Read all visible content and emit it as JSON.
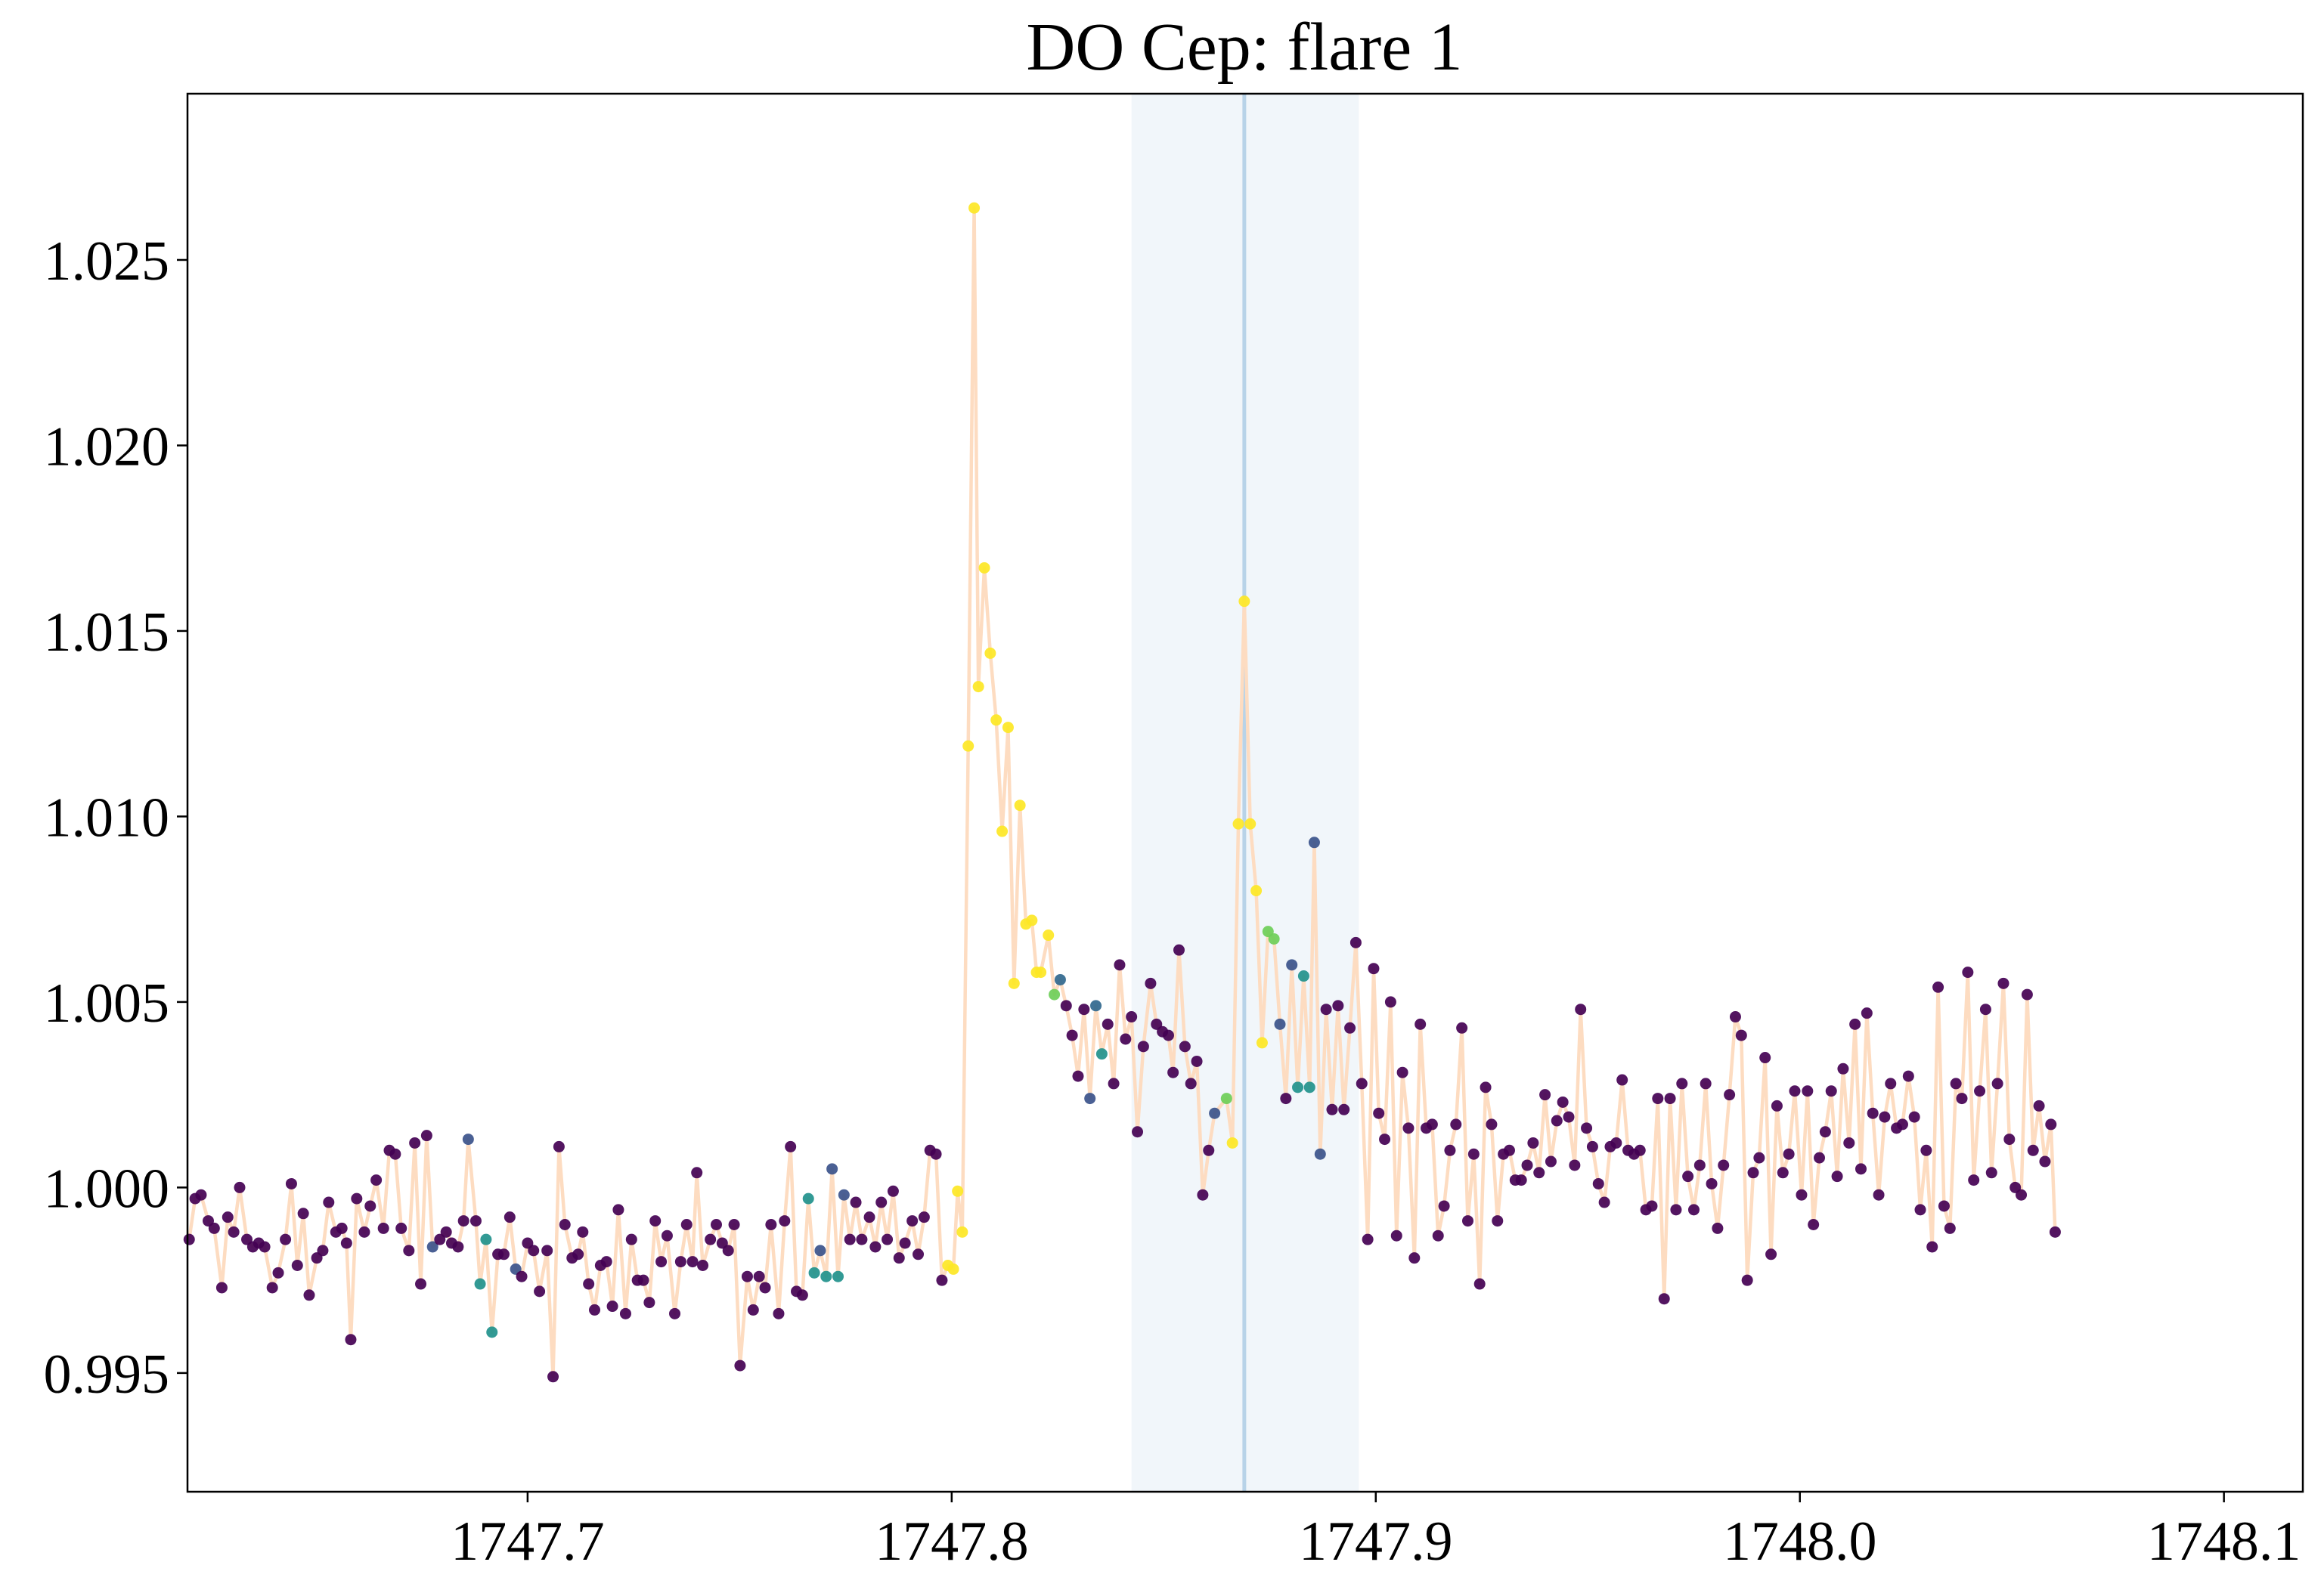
{
  "chart_data": {
    "type": "scatter",
    "title": "DO Cep: flare 1",
    "x": [
      1747.6202,
      1747.6216,
      1747.623,
      1747.6247,
      1747.6261,
      1747.6279,
      1747.6293,
      1747.6307,
      1747.6321,
      1747.6338,
      1747.6352,
      1747.6366,
      1747.638,
      1747.6398,
      1747.6412,
      1747.6429,
      1747.6443,
      1747.6457,
      1747.6471,
      1747.6485,
      1747.6503,
      1747.6517,
      1747.6531,
      1747.6548,
      1747.6562,
      1747.6573,
      1747.6583,
      1747.6597,
      1747.6615,
      1747.6629,
      1747.6643,
      1747.666,
      1747.6674,
      1747.6688,
      1747.6702,
      1747.672,
      1747.6734,
      1747.6748,
      1747.6762,
      1747.6776,
      1747.6793,
      1747.6808,
      1747.6821,
      1747.6836,
      1747.6849,
      1747.686,
      1747.6878,
      1747.6888,
      1747.6902,
      1747.6916,
      1747.693,
      1747.6944,
      1747.6958,
      1747.6972,
      1747.6986,
      1747.7,
      1747.7014,
      1747.7028,
      1747.7046,
      1747.706,
      1747.7074,
      1747.7088,
      1747.7105,
      1747.7119,
      1747.713,
      1747.7144,
      1747.7158,
      1747.7172,
      1747.7186,
      1747.72,
      1747.7214,
      1747.7231,
      1747.7245,
      1747.7259,
      1747.7273,
      1747.7287,
      1747.7301,
      1747.7315,
      1747.7329,
      1747.7347,
      1747.7361,
      1747.7375,
      1747.7389,
      1747.7399,
      1747.7413,
      1747.7431,
      1747.7445,
      1747.7459,
      1747.7473,
      1747.7487,
      1747.7501,
      1747.7518,
      1747.7532,
      1747.7546,
      1747.756,
      1747.7574,
      1747.7592,
      1747.7606,
      1747.762,
      1747.7634,
      1747.7648,
      1747.7662,
      1747.7676,
      1747.769,
      1747.7704,
      1747.7718,
      1747.7732,
      1747.7746,
      1747.776,
      1747.7774,
      1747.7788,
      1747.7806,
      1747.782,
      1747.7834,
      1747.7848,
      1747.7862,
      1747.7876,
      1747.789,
      1747.7907,
      1747.7921,
      1747.7935,
      1747.7949,
      1747.7963,
      1747.7977,
      1747.7991,
      1747.8004,
      1747.8014,
      1747.8025,
      1747.8039,
      1747.8053,
      1747.8063,
      1747.8077,
      1747.8091,
      1747.8105,
      1747.8119,
      1747.8133,
      1747.8147,
      1747.8161,
      1747.8175,
      1747.8189,
      1747.82,
      1747.821,
      1747.8228,
      1747.8242,
      1747.8256,
      1747.827,
      1747.8284,
      1747.8298,
      1747.8312,
      1747.8326,
      1747.834,
      1747.8354,
      1747.8368,
      1747.8382,
      1747.8396,
      1747.841,
      1747.8424,
      1747.8438,
      1747.8452,
      1747.8469,
      1747.8483,
      1747.8497,
      1747.8511,
      1747.8522,
      1747.8536,
      1747.855,
      1747.8564,
      1747.8578,
      1747.8592,
      1747.8606,
      1747.862,
      1747.8648,
      1747.8662,
      1747.8676,
      1747.869,
      1747.8704,
      1747.8718,
      1747.8732,
      1747.8746,
      1747.876,
      1747.8774,
      1747.8788,
      1747.8802,
      1747.8816,
      1747.883,
      1747.8844,
      1747.8855,
      1747.8869,
      1747.8883,
      1747.8897,
      1747.8911,
      1747.8925,
      1747.8939,
      1747.8953,
      1747.8967,
      1747.8981,
      1747.8995,
      1747.9007,
      1747.9021,
      1747.9035,
      1747.9049,
      1747.9063,
      1747.9077,
      1747.9091,
      1747.9105,
      1747.9119,
      1747.9133,
      1747.9147,
      1747.9161,
      1747.9175,
      1747.9189,
      1747.9203,
      1747.9217,
      1747.9231,
      1747.9245,
      1747.9259,
      1747.9273,
      1747.9287,
      1747.9301,
      1747.9315,
      1747.9329,
      1747.9343,
      1747.9357,
      1747.9371,
      1747.9385,
      1747.9399,
      1747.9413,
      1747.9427,
      1747.9441,
      1747.9455,
      1747.9469,
      1747.9483,
      1747.9497,
      1747.9511,
      1747.9525,
      1747.9539,
      1747.9553,
      1747.9567,
      1747.9581,
      1747.9595,
      1747.9609,
      1747.9623,
      1747.9637,
      1747.9651,
      1747.9665,
      1747.968,
      1747.9694,
      1747.9708,
      1747.9722,
      1747.9736,
      1747.975,
      1747.9764,
      1747.9778,
      1747.9792,
      1747.9806,
      1747.982,
      1747.9834,
      1747.9848,
      1747.9862,
      1747.9876,
      1747.989,
      1747.9904,
      1747.9918,
      1747.9932,
      1747.9946,
      1747.996,
      1747.9974,
      1747.9988,
      1748.0004,
      1748.0018,
      1748.0032,
      1748.0046,
      1748.006,
      1748.0074,
      1748.0088,
      1748.0102,
      1748.0116,
      1748.013,
      1748.0144,
      1748.0158,
      1748.0172,
      1748.0186,
      1748.02,
      1748.0214,
      1748.0228,
      1748.0242,
      1748.0256,
      1748.027,
      1748.0284,
      1748.0298,
      1748.0312,
      1748.0326,
      1748.034,
      1748.0354,
      1748.0368,
      1748.0382,
      1748.0396,
      1748.041,
      1748.0424,
      1748.0438,
      1748.0452,
      1748.0466,
      1748.048,
      1748.0494,
      1748.0508,
      1748.0522,
      1748.0536,
      1748.055,
      1748.0564,
      1748.0578,
      1748.0592,
      1748.0602
    ],
    "series": [
      {
        "color": "#fddcc1",
        "values": [
          0.9986,
          0.9997,
          0.9998,
          0.9991,
          0.9989,
          0.9973,
          0.9992,
          0.9988,
          1.0,
          0.9986,
          0.9984,
          0.9985,
          0.9984,
          0.9973,
          0.9977,
          0.9986,
          1.0001,
          0.9979,
          0.9993,
          0.9971,
          0.9981,
          0.9983,
          0.9996,
          0.9988,
          0.9989,
          0.9985,
          0.9959,
          0.9997,
          0.9988,
          0.9995,
          1.0002,
          0.9989,
          1.001,
          1.0009,
          0.9989,
          0.9983,
          1.0012,
          0.9974,
          1.0014,
          0.9984,
          0.9986,
          0.9988,
          0.9985,
          0.9984,
          0.9991,
          1.0013,
          0.9991,
          0.9974,
          0.9986,
          0.9961,
          0.9982,
          0.9982,
          0.9992,
          0.9978,
          0.9976,
          0.9985,
          0.9983,
          0.9972,
          0.9983,
          0.9949,
          1.0011,
          0.999,
          0.9981,
          0.9982,
          0.9988,
          0.9974,
          0.9967,
          0.9979,
          0.998,
          0.9968,
          0.9994,
          0.9966,
          0.9986,
          0.9975,
          0.9975,
          0.9969,
          0.9991,
          0.998,
          0.9987,
          0.9966,
          0.998,
          0.999,
          0.998,
          1.0004,
          0.9979,
          0.9986,
          0.999,
          0.9985,
          0.9983,
          0.999,
          0.9952,
          0.9976,
          0.9967,
          0.9976,
          0.9973,
          0.999,
          0.9966,
          0.9991,
          1.0011,
          0.9972,
          0.9971,
          0.9997,
          0.9977,
          0.9983,
          0.9976,
          1.0005,
          0.9976,
          0.9998,
          0.9986,
          0.9996,
          0.9986,
          0.9992,
          0.9984,
          0.9996,
          0.9986,
          0.9999,
          0.9981,
          0.9985,
          0.9991,
          0.9982,
          0.9992,
          1.001,
          1.0009,
          0.9975,
          0.9979,
          0.9978,
          0.9999,
          0.9988,
          1.0119,
          1.0264,
          1.0135,
          1.0167,
          1.0144,
          1.0126,
          1.0096,
          1.0124,
          1.0055,
          1.0103,
          1.0071,
          1.0072,
          1.0058,
          1.0058,
          1.0068,
          1.0052,
          1.0056,
          1.0049,
          1.0041,
          1.003,
          1.0048,
          1.0024,
          1.0049,
          1.0036,
          1.0044,
          1.0028,
          1.006,
          1.004,
          1.0046,
          1.0015,
          1.0038,
          1.0055,
          1.0044,
          1.0042,
          1.0041,
          1.0031,
          1.0064,
          1.0038,
          1.0028,
          1.0034,
          0.9998,
          1.001,
          1.002,
          1.0024,
          1.0012,
          1.0098,
          1.0158,
          1.0098,
          1.008,
          1.0039,
          1.0069,
          1.0067,
          1.0044,
          1.0024,
          1.006,
          1.0027,
          1.0057,
          1.0027,
          1.0093,
          1.0009,
          1.0048,
          1.0021,
          1.0049,
          1.0021,
          1.0043,
          1.0066,
          1.0028,
          0.9986,
          1.0059,
          1.002,
          1.0013,
          1.005,
          0.9987,
          1.0031,
          1.0016,
          0.9981,
          1.0044,
          1.0016,
          1.0017,
          0.9987,
          0.9995,
          1.001,
          1.0017,
          1.0043,
          0.9991,
          1.0009,
          0.9974,
          1.0027,
          1.0017,
          0.9991,
          1.0009,
          1.001,
          1.0002,
          1.0002,
          1.0006,
          1.0012,
          1.0004,
          1.0025,
          1.0007,
          1.0018,
          1.0023,
          1.0019,
          1.0006,
          1.0048,
          1.0016,
          1.0011,
          1.0001,
          0.9996,
          1.0011,
          1.0012,
          1.0029,
          1.001,
          1.0009,
          1.001,
          0.9994,
          0.9995,
          1.0024,
          0.997,
          1.0024,
          0.9994,
          1.0028,
          1.0003,
          0.9994,
          1.0006,
          1.0028,
          1.0001,
          0.9989,
          1.0006,
          1.0025,
          1.0046,
          1.0041,
          0.9975,
          1.0004,
          1.0008,
          1.0035,
          0.9982,
          1.0022,
          1.0004,
          1.0009,
          1.0026,
          0.9998,
          1.0026,
          0.999,
          1.0008,
          1.0015,
          1.0026,
          1.0003,
          1.0032,
          1.0012,
          1.0044,
          1.0005,
          1.0047,
          1.002,
          0.9998,
          1.0019,
          1.0028,
          1.0016,
          1.0017,
          1.003,
          1.0019,
          0.9994,
          1.001,
          0.9984,
          1.0054,
          0.9995,
          0.9989,
          1.0028,
          1.0024,
          1.0058,
          1.0002,
          1.0026,
          1.0048,
          1.0004,
          1.0028,
          1.0055,
          1.0013,
          1.0,
          0.9998,
          1.0052,
          1.001,
          1.0022,
          1.0007,
          1.0017,
          0.9988
        ],
        "point_colors": [
          "#440154",
          "#440154",
          "#440154",
          "#440154",
          "#440154",
          "#440154",
          "#440154",
          "#440154",
          "#440154",
          "#440154",
          "#440154",
          "#440154",
          "#440154",
          "#440154",
          "#440154",
          "#440154",
          "#440154",
          "#440154",
          "#440154",
          "#440154",
          "#440154",
          "#440154",
          "#440154",
          "#440154",
          "#440154",
          "#440154",
          "#440154",
          "#440154",
          "#440154",
          "#440154",
          "#440154",
          "#440154",
          "#440154",
          "#440154",
          "#440154",
          "#440154",
          "#440154",
          "#440154",
          "#440154",
          "#3b528b",
          "#440154",
          "#440154",
          "#440154",
          "#440154",
          "#440154",
          "#3b528b",
          "#440154",
          "#21918c",
          "#21918c",
          "#21918c",
          "#440154",
          "#440154",
          "#440154",
          "#3b528b",
          "#440154",
          "#440154",
          "#440154",
          "#440154",
          "#440154",
          "#440154",
          "#440154",
          "#440154",
          "#440154",
          "#440154",
          "#440154",
          "#440154",
          "#440154",
          "#440154",
          "#440154",
          "#440154",
          "#440154",
          "#440154",
          "#440154",
          "#440154",
          "#440154",
          "#440154",
          "#440154",
          "#440154",
          "#440154",
          "#440154",
          "#440154",
          "#440154",
          "#440154",
          "#440154",
          "#440154",
          "#440154",
          "#440154",
          "#440154",
          "#440154",
          "#440154",
          "#440154",
          "#440154",
          "#440154",
          "#440154",
          "#440154",
          "#440154",
          "#440154",
          "#440154",
          "#440154",
          "#440154",
          "#440154",
          "#21918c",
          "#21918c",
          "#3b528b",
          "#21918c",
          "#3b528b",
          "#21918c",
          "#3b528b",
          "#440154",
          "#440154",
          "#440154",
          "#440154",
          "#440154",
          "#440154",
          "#440154",
          "#440154",
          "#440154",
          "#440154",
          "#440154",
          "#440154",
          "#440154",
          "#440154",
          "#440154",
          "#440154",
          "#fde725",
          "#fde725",
          "#fde725",
          "#fde725",
          "#fde725",
          "#fde725",
          "#fde725",
          "#fde725",
          "#fde725",
          "#fde725",
          "#fde725",
          "#fde725",
          "#fde725",
          "#fde725",
          "#fde725",
          "#fde725",
          "#fde725",
          "#fde725",
          "#fde725",
          "#6ece58",
          "#31688e",
          "#440154",
          "#440154",
          "#440154",
          "#440154",
          "#3b528b",
          "#31688e",
          "#21918c",
          "#440154",
          "#440154",
          "#440154",
          "#440154",
          "#440154",
          "#440154",
          "#440154",
          "#440154",
          "#440154",
          "#440154",
          "#440154",
          "#440154",
          "#440154",
          "#440154",
          "#440154",
          "#440154",
          "#440154",
          "#440154",
          "#3b528b",
          "#6ece58",
          "#fde725",
          "#fde725",
          "#fde725",
          "#fde725",
          "#fde725",
          "#fde725",
          "#6ece58",
          "#6ece58",
          "#3b528b",
          "#440154",
          "#3b528b",
          "#21918c",
          "#21918c",
          "#21918c",
          "#3b528b",
          "#3b528b",
          "#440154",
          "#440154",
          "#440154",
          "#440154",
          "#440154",
          "#440154",
          "#440154",
          "#440154",
          "#440154",
          "#440154",
          "#440154",
          "#440154",
          "#440154",
          "#440154",
          "#440154",
          "#440154",
          "#440154",
          "#440154",
          "#440154",
          "#440154",
          "#440154",
          "#440154",
          "#440154",
          "#440154",
          "#440154",
          "#440154",
          "#440154",
          "#440154",
          "#440154",
          "#440154",
          "#440154",
          "#440154",
          "#440154",
          "#440154",
          "#440154",
          "#440154",
          "#440154",
          "#440154",
          "#440154",
          "#440154",
          "#440154",
          "#440154",
          "#440154",
          "#440154",
          "#440154",
          "#440154",
          "#440154",
          "#440154",
          "#440154",
          "#440154",
          "#440154",
          "#440154",
          "#440154",
          "#440154",
          "#440154",
          "#440154",
          "#440154",
          "#440154",
          "#440154",
          "#440154",
          "#440154",
          "#440154",
          "#440154",
          "#440154",
          "#440154",
          "#440154",
          "#440154",
          "#440154",
          "#440154",
          "#440154",
          "#440154",
          "#440154",
          "#440154",
          "#440154",
          "#440154",
          "#440154",
          "#440154",
          "#440154",
          "#440154",
          "#440154",
          "#440154",
          "#440154",
          "#440154",
          "#440154",
          "#440154",
          "#440154",
          "#440154",
          "#440154",
          "#440154",
          "#440154",
          "#440154",
          "#440154",
          "#440154",
          "#440154",
          "#440154",
          "#440154",
          "#440154",
          "#440154",
          "#440154",
          "#440154",
          "#440154",
          "#440154",
          "#440154",
          "#440154",
          "#440154",
          "#440154",
          "#440154",
          "#440154",
          "#440154",
          "#440154",
          "#440154",
          "#440154",
          "#440154",
          "#440154",
          "#440154",
          "#440154",
          "#440154",
          "#440154",
          "#440154",
          "#440154",
          "#440154",
          "#440154",
          "#440154",
          "#440154"
        ]
      }
    ],
    "span": [
      1747.8424,
      1747.896
    ],
    "span_color": "#f1f6fa",
    "vline": 1747.869,
    "vline_color": "#b8d3e8",
    "xlim": [
      1747.6198,
      1748.1186
    ],
    "ylim": [
      0.9918,
      1.02948
    ],
    "xticks": [
      1747.7,
      1747.8,
      1747.9,
      {
        "value": 1748.0,
        "label": "1748.0"
      },
      1748.1
    ],
    "yticks": [
      0.995,
      {
        "value": 1.0,
        "label": "1.000"
      },
      1.005,
      {
        "value": 1.01,
        "label": "1.010"
      },
      1.015,
      {
        "value": 1.02,
        "label": "1.020"
      },
      1.025
    ],
    "grid": false
  }
}
